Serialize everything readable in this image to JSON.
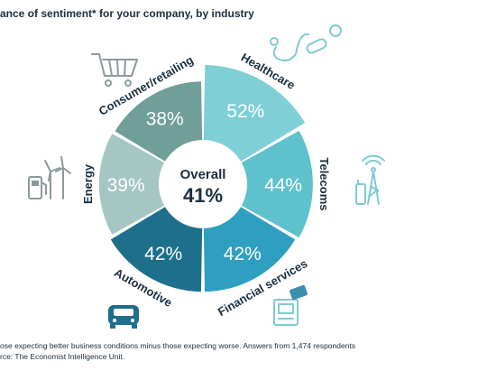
{
  "title": "ance of sentiment* for your company, by industry",
  "footnote": {
    "line1": "ose expecting better business conditions minus those expecting worse. Answers from 1,474 respondents",
    "line2": "rce: The Economist Intelligence Unit."
  },
  "chart_data": {
    "type": "pie",
    "title": "ance of sentiment* for your company, by industry",
    "center": {
      "label": "Overall",
      "value": "41%"
    },
    "slices": [
      {
        "category": "Healthcare",
        "value": 52,
        "label": "52%",
        "color": "#7fcfd6"
      },
      {
        "category": "Telecoms",
        "value": 44,
        "label": "44%",
        "color": "#5ec1cc"
      },
      {
        "category": "Financial services",
        "value": 42,
        "label": "42%",
        "color": "#2e9fc0"
      },
      {
        "category": "Automotive",
        "value": 42,
        "label": "42%",
        "color": "#1d6f8c"
      },
      {
        "category": "Energy",
        "value": 39,
        "label": "39%",
        "color": "#a5c6c3"
      },
      {
        "category": "Consumer/retailing",
        "value": 38,
        "label": "38%",
        "color": "#6f9f98"
      }
    ]
  },
  "icons": [
    "stethoscope-pills-icon",
    "radio-tower-phone-icon",
    "atm-card-icon",
    "car-icon",
    "fuel-wind-turbine-icon",
    "shopping-cart-icon"
  ]
}
